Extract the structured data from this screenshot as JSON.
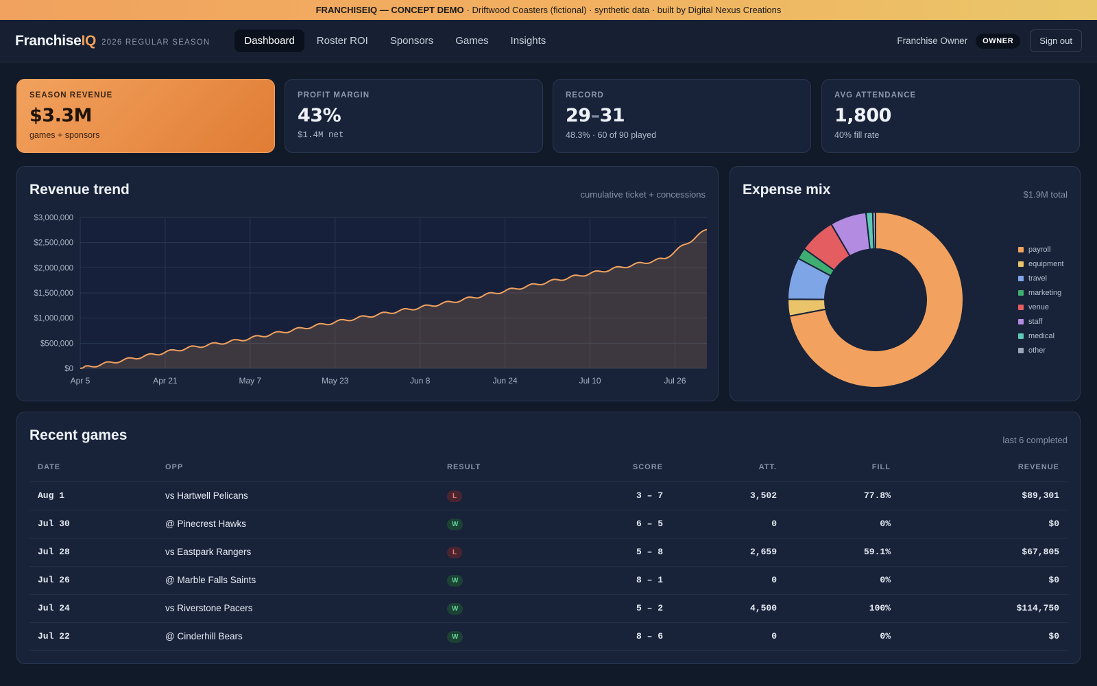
{
  "banner": {
    "bold": "FRANCHISEIQ — CONCEPT DEMO",
    "rest": "· Driftwood Coasters (fictional) · synthetic data · built by Digital Nexus Creations"
  },
  "nav": {
    "brand_main": "Franchise",
    "brand_accent": "IQ",
    "season": "2026 REGULAR SEASON",
    "tabs": [
      "Dashboard",
      "Roster ROI",
      "Sponsors",
      "Games",
      "Insights"
    ],
    "active_tab": "Dashboard",
    "user": "Franchise Owner",
    "badge": "OWNER",
    "signout": "Sign out"
  },
  "kpis": [
    {
      "label": "SEASON REVENUE",
      "value": "$3.3M",
      "sub": "games + sponsors"
    },
    {
      "label": "PROFIT MARGIN",
      "value": "43%",
      "sub": "$1.4M net"
    },
    {
      "label": "RECORD",
      "value_a": "29",
      "value_sep": "–",
      "value_b": "31",
      "sub": "48.3% · 60 of 90 played"
    },
    {
      "label": "AVG ATTENDANCE",
      "value": "1,800",
      "sub": "40% fill rate"
    }
  ],
  "revenue_panel": {
    "title": "Revenue trend",
    "note": "cumulative ticket + concessions"
  },
  "expense_panel": {
    "title": "Expense mix",
    "note": "$1.9M total"
  },
  "games_panel": {
    "title": "Recent games",
    "note": "last 6 completed",
    "columns": [
      "DATE",
      "OPP",
      "RESULT",
      "SCORE",
      "ATT.",
      "FILL",
      "REVENUE"
    ],
    "rows": [
      {
        "date": "Aug 1",
        "opp": "vs Hartwell Pelicans",
        "result": "L",
        "score": "3 – 7",
        "att": "3,502",
        "fill": "77.8%",
        "revenue": "$89,301"
      },
      {
        "date": "Jul 30",
        "opp": "@ Pinecrest Hawks",
        "result": "W",
        "score": "6 – 5",
        "att": "0",
        "fill": "0%",
        "revenue": "$0"
      },
      {
        "date": "Jul 28",
        "opp": "vs Eastpark Rangers",
        "result": "L",
        "score": "5 – 8",
        "att": "2,659",
        "fill": "59.1%",
        "revenue": "$67,805"
      },
      {
        "date": "Jul 26",
        "opp": "@ Marble Falls Saints",
        "result": "W",
        "score": "8 – 1",
        "att": "0",
        "fill": "0%",
        "revenue": "$0"
      },
      {
        "date": "Jul 24",
        "opp": "vs Riverstone Pacers",
        "result": "W",
        "score": "5 – 2",
        "att": "4,500",
        "fill": "100%",
        "revenue": "$114,750"
      },
      {
        "date": "Jul 22",
        "opp": "@ Cinderhill Bears",
        "result": "W",
        "score": "8 – 6",
        "att": "0",
        "fill": "0%",
        "revenue": "$0"
      }
    ]
  },
  "colors": {
    "accent": "#f0a05e",
    "bg": "#111a28",
    "card": "#18233a",
    "win": "#5fd39a",
    "loss": "#f07a7a"
  },
  "chart_data": [
    {
      "type": "area",
      "title": "Revenue trend",
      "subtitle": "cumulative ticket + concessions",
      "xlabel": "",
      "ylabel": "",
      "x_ticks": [
        "Apr 5",
        "Apr 21",
        "May 7",
        "May 23",
        "Jun 8",
        "Jun 24",
        "Jul 10",
        "Jul 26"
      ],
      "x_range": [
        "Apr 5",
        "Aug 1"
      ],
      "y_ticks": [
        "$0",
        "$500,000",
        "$1,000,000",
        "$1,500,000",
        "$2,000,000",
        "$2,500,000",
        "$3,000,000"
      ],
      "ylim": [
        0,
        3000000
      ],
      "grid": true,
      "series": [
        {
          "values": [
            [
              0,
              0
            ],
            [
              10,
              200000
            ],
            [
              20,
              400000
            ],
            [
              30,
              560000
            ],
            [
              40,
              760000
            ],
            [
              50,
              960000
            ],
            [
              60,
              1140000
            ],
            [
              70,
              1320000
            ],
            [
              80,
              1540000
            ],
            [
              90,
              1760000
            ],
            [
              100,
              1970000
            ],
            [
              110,
              2180000
            ],
            [
              120,
              2330000
            ],
            [
              130,
              2560000
            ],
            [
              140,
              2680000
            ],
            [
              118,
              2760000
            ]
          ]
        }
      ]
    },
    {
      "type": "pie",
      "title": "Expense mix",
      "subtitle": "$1.9M total",
      "donut": true,
      "legend": "right",
      "slices": [
        {
          "label": "payroll",
          "value": 70.0,
          "color": "#f2a25e"
        },
        {
          "label": "equipment",
          "value": 3.0,
          "color": "#e9c46a"
        },
        {
          "label": "travel",
          "value": 7.5,
          "color": "#7ea6e6"
        },
        {
          "label": "marketing",
          "value": 2.0,
          "color": "#3fae72"
        },
        {
          "label": "venue",
          "value": 6.5,
          "color": "#e35d61"
        },
        {
          "label": "staff",
          "value": 6.5,
          "color": "#b38be0"
        },
        {
          "label": "medical",
          "value": 1.2,
          "color": "#5ec8b4"
        },
        {
          "label": "other",
          "value": 0.5,
          "color": "#9aa6b8"
        }
      ]
    }
  ]
}
